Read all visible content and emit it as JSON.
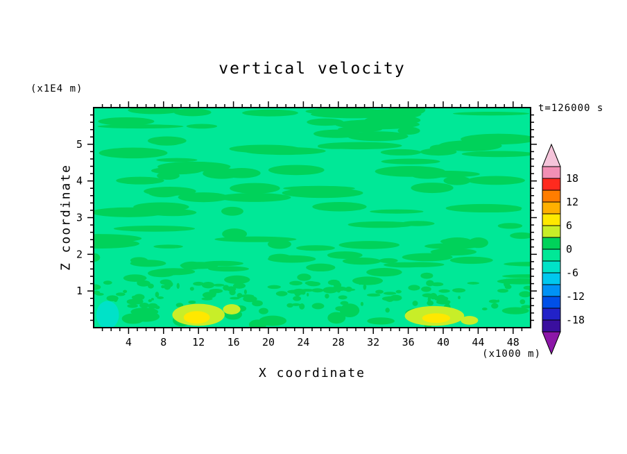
{
  "chart_data": {
    "type": "contour",
    "title": "vertical velocity",
    "xlabel": "X coordinate",
    "ylabel": "Z coordinate",
    "x_units_note": "(x1000 m)",
    "y_units_note": "(x1E4 m)",
    "time_annotation": "t=126000 s",
    "x_range": [
      0,
      50
    ],
    "z_range": [
      0,
      6
    ],
    "x_major_ticks": [
      4,
      8,
      12,
      16,
      20,
      24,
      28,
      32,
      36,
      40,
      44,
      48
    ],
    "x_minor_step": 1,
    "z_major_ticks": [
      1,
      2,
      3,
      4,
      5
    ],
    "z_minor_step": 0.2,
    "contour_interval": 3,
    "background_value_color": "#00E897",
    "field_summary": "Vertical velocity field is near zero almost everywhere (filled with the -3..0 spring-green band). Elongated horizontal streaks of the 0..3 green band occur throughout, with fine speckled texture below z=1.3e4 m. Near the surface there are yellow-green positive patches (values 3-9) centered near x=12e3 m and x=39e3 m, and a small negative cyan patch near x=2e3 m.",
    "colorbar": {
      "cells": [
        {
          "range": [
            18,
            21
          ],
          "color": "#F28FB4"
        },
        {
          "range": [
            15,
            18
          ],
          "color": "#FF2A1E"
        },
        {
          "range": [
            12,
            15
          ],
          "color": "#FF7D00"
        },
        {
          "range": [
            9,
            12
          ],
          "color": "#FFB000"
        },
        {
          "range": [
            6,
            9
          ],
          "color": "#FFE800"
        },
        {
          "range": [
            3,
            6
          ],
          "color": "#C8EE28"
        },
        {
          "range": [
            0,
            3
          ],
          "color": "#00D25A"
        },
        {
          "range": [
            -3,
            0
          ],
          "color": "#00E897"
        },
        {
          "range": [
            -6,
            -3
          ],
          "color": "#00E2C8"
        },
        {
          "range": [
            -9,
            -6
          ],
          "color": "#00C8EE"
        },
        {
          "range": [
            -12,
            -9
          ],
          "color": "#0092F5"
        },
        {
          "range": [
            -15,
            -12
          ],
          "color": "#0050E8"
        },
        {
          "range": [
            -18,
            -15
          ],
          "color": "#2222C8"
        },
        {
          "range": [
            -21,
            -18
          ],
          "color": "#3A0F9E"
        }
      ],
      "top_cap_color": "#F5C4DA",
      "bottom_cap_color": "#8C17A8",
      "labels": [
        {
          "text": "18",
          "boundary": 1
        },
        {
          "text": "12",
          "boundary": 3
        },
        {
          "text": "6",
          "boundary": 5
        },
        {
          "text": "0",
          "boundary": 7
        },
        {
          "text": "-6",
          "boundary": 9
        },
        {
          "text": "-12",
          "boundary": 11
        },
        {
          "text": "-18",
          "boundary": 13
        }
      ]
    },
    "features": [
      {
        "name": "updraft-patch-left",
        "x": 12.0,
        "z": 0.35,
        "rx": 3.0,
        "rz": 0.3,
        "color": "#C8EE28"
      },
      {
        "name": "updraft-core-left",
        "x": 11.8,
        "z": 0.28,
        "rx": 1.5,
        "rz": 0.17,
        "color": "#FFE800"
      },
      {
        "name": "updraft-minor-left",
        "x": 15.8,
        "z": 0.5,
        "rx": 1.0,
        "rz": 0.14,
        "color": "#C8EE28"
      },
      {
        "name": "updraft-patch-right",
        "x": 39.0,
        "z": 0.32,
        "rx": 3.4,
        "rz": 0.27,
        "color": "#C8EE28"
      },
      {
        "name": "updraft-core-right",
        "x": 39.2,
        "z": 0.26,
        "rx": 1.6,
        "rz": 0.13,
        "color": "#FFE800"
      },
      {
        "name": "updraft-minor-right",
        "x": 43.0,
        "z": 0.2,
        "rx": 1.0,
        "rz": 0.12,
        "color": "#C8EE28"
      },
      {
        "name": "downdraft-patch-left",
        "x": 1.6,
        "z": 0.35,
        "rx": 1.3,
        "rz": 0.38,
        "color": "#00E2C8"
      }
    ],
    "texture_layers": [
      {
        "name": "upper-streaks",
        "count": 80,
        "x": [
          0,
          50
        ],
        "z": [
          2.2,
          5.95
        ],
        "rx": [
          1.0,
          5.0
        ],
        "rz": [
          0.05,
          0.15
        ],
        "color": "#00D25A"
      },
      {
        "name": "mid-streaks",
        "count": 30,
        "x": [
          0,
          50
        ],
        "z": [
          1.2,
          2.2
        ],
        "rx": [
          0.7,
          3.2
        ],
        "rz": [
          0.05,
          0.12
        ],
        "color": "#00D25A"
      },
      {
        "name": "speckles",
        "count": 130,
        "x": [
          0,
          50
        ],
        "z": [
          0.45,
          1.25
        ],
        "rx": [
          0.12,
          0.85
        ],
        "rz": [
          0.035,
          0.09
        ],
        "color": "#00D25A"
      },
      {
        "name": "bottom-blobs",
        "count": 16,
        "x": [
          0,
          50
        ],
        "z": [
          0.05,
          0.5
        ],
        "rx": [
          0.4,
          1.6
        ],
        "rz": [
          0.08,
          0.2
        ],
        "color": "#00D25A"
      }
    ],
    "seed": 7
  }
}
